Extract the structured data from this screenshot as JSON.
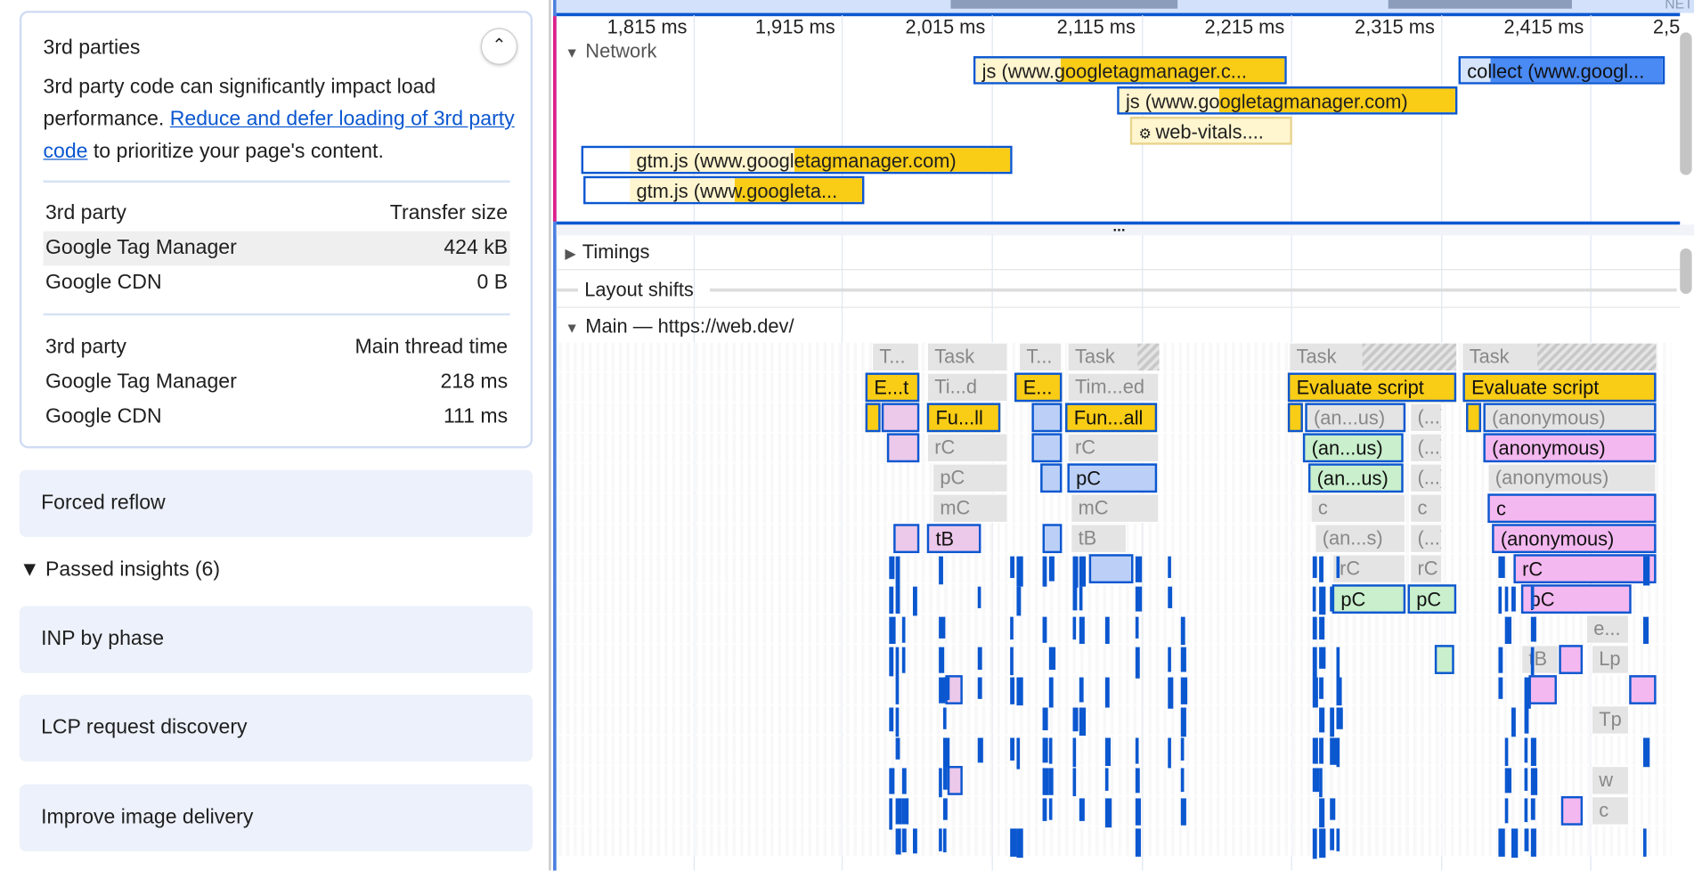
{
  "insight": {
    "title": "3rd parties",
    "desc_before": "3rd party code can significantly impact load performance. ",
    "link": "Reduce and defer loading of 3rd party code",
    "desc_after": " to prioritize your page's content.",
    "collapse_icon": "chevron-up-icon",
    "size_table": {
      "col1": "3rd party",
      "col2": "Transfer size",
      "rows": [
        [
          "Google Tag Manager",
          "424 kB"
        ],
        [
          "Google CDN",
          "0 B"
        ]
      ]
    },
    "time_table": {
      "col1": "3rd party",
      "col2": "Main thread time",
      "rows": [
        [
          "Google Tag Manager",
          "218 ms"
        ],
        [
          "Google CDN",
          "111 ms"
        ]
      ]
    }
  },
  "forced_reflow": "Forced reflow",
  "passed": {
    "label": "Passed insights (6)",
    "items": [
      "INP by phase",
      "LCP request discovery",
      "Improve image delivery"
    ]
  },
  "timeline": {
    "overview_label": "NET",
    "ticks": [
      "1,815 ms",
      "1,915 ms",
      "2,015 ms",
      "2,115 ms",
      "2,215 ms",
      "2,315 ms",
      "2,415 ms",
      "2,5"
    ],
    "network_label": "Network",
    "requests": [
      "js (www.googletagmanager.c...",
      "collect (www.googl...",
      "js (www.googletagmanager.com)",
      "web-vitals....",
      "gtm.js (www.googletagmanager.com)",
      "gtm.js (www.googleta..."
    ],
    "resize_handle": "...",
    "timings": "Timings",
    "layout_shifts": "Layout shifts",
    "main": "Main — https://web.dev/",
    "flame": [
      "T...",
      "Task",
      "T...",
      "Task",
      "Task",
      "Task",
      "E...t",
      "Ti...d",
      "E...",
      "Tim...ed",
      "Evaluate script",
      "Evaluate script",
      "Fu...ll",
      "Fun...all",
      "(an...us)",
      "(...)",
      "(anonymous)",
      "rC",
      "rC",
      "(an...us)",
      "(...)",
      "(anonymous)",
      "pC",
      "pC",
      "(an...us)",
      "(...)",
      "(anonymous)",
      "mC",
      "mC",
      "c",
      "c",
      "c",
      "tB",
      "tB",
      "(an...s)",
      "(...)",
      "(anonymous)",
      "rC",
      "rC",
      "rC",
      "pC",
      "pC",
      "pC",
      "e...",
      "tB",
      "Lp",
      "Tp",
      "w",
      "c"
    ],
    "colors": {
      "script": "#f9cc15",
      "task": "#e4e4e4",
      "selected_border": "#0b57d0",
      "network_blue": "#4a8af4",
      "pink": "#f4b8f0",
      "green": "#c9efcc",
      "blue": "#bcd0f7"
    }
  }
}
